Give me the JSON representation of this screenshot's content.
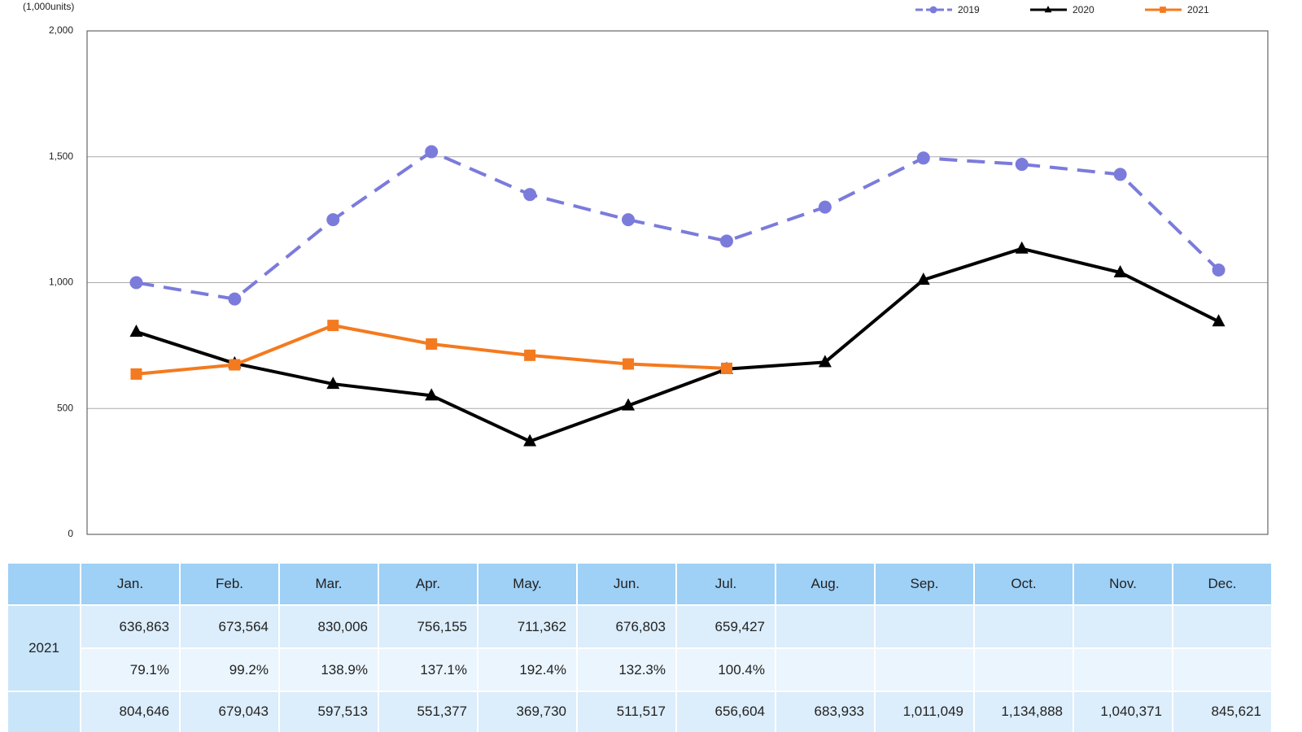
{
  "chart_data": {
    "type": "line",
    "y_unit_label": "(1,000units)",
    "categories": [
      "Jan.",
      "Feb.",
      "Mar.",
      "Apr.",
      "May.",
      "Jun.",
      "Jul.",
      "Aug.",
      "Sep.",
      "Oct.",
      "Nov.",
      "Dec."
    ],
    "ylim": [
      0,
      2000
    ],
    "yticks": [
      0,
      500,
      {
        "value": 1000,
        "label": "1,000"
      },
      {
        "value": 1500,
        "label": "1,500"
      },
      {
        "value": 2000,
        "label": "2,000"
      }
    ],
    "grid": true,
    "legend": "top-right",
    "series": [
      {
        "name": "2019",
        "color": "#7b7bdc",
        "dashed": true,
        "marker": "circle",
        "values": [
          1000,
          935,
          1250,
          1520,
          1350,
          1250,
          1165,
          1300,
          1495,
          1470,
          1430,
          1050
        ]
      },
      {
        "name": "2020",
        "color": "#000000",
        "marker": "triangle",
        "values": [
          804.646,
          679.043,
          597.513,
          551.377,
          369.73,
          511.517,
          656.604,
          683.933,
          1011.049,
          1134.888,
          1040.371,
          845.621
        ],
        "value_labels": [
          "804,646",
          "679,043",
          "597,513",
          "551,377",
          "369,730",
          "511,517",
          "656,604",
          "683,933",
          "1,011,049",
          "1,134,888",
          "1,040,371",
          "845,621"
        ]
      },
      {
        "name": "2021",
        "color": "#f47a1f",
        "marker": "square",
        "values": [
          636.863,
          673.564,
          830.006,
          756.155,
          711.362,
          676.803,
          659.427,
          null,
          null,
          null,
          null,
          null
        ],
        "value_labels": [
          "636,863",
          "673,564",
          "830,006",
          "756,155",
          "711,362",
          "676,803",
          "659,427",
          null,
          null,
          null,
          null,
          null
        ]
      }
    ]
  },
  "table": {
    "yoy_2021": [
      "79.1%",
      "99.2%",
      "138.9%",
      "137.1%",
      "192.4%",
      "132.3%",
      "100.4%"
    ]
  }
}
